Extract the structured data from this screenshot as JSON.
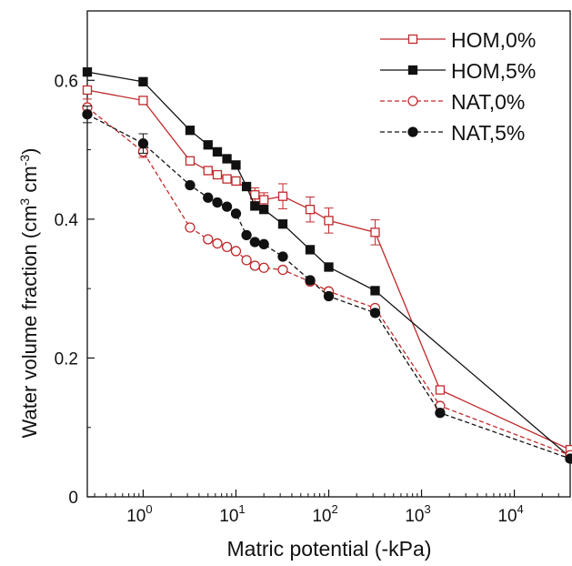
{
  "chart_data": {
    "type": "line",
    "xlabel": "Matric potential (-kPa)",
    "ylabel_main": "Water volume fraction (cm",
    "ylabel_sup1": "3",
    "ylabel_mid": " cm",
    "ylabel_sup2": "-3",
    "ylabel_end": ")",
    "x_scale": "log",
    "xlim": [
      0.25,
      40000
    ],
    "ylim": [
      0,
      0.7
    ],
    "x_ticks": [
      {
        "value": 1,
        "base": "10",
        "exp": "0"
      },
      {
        "value": 10,
        "base": "10",
        "exp": "1"
      },
      {
        "value": 100,
        "base": "10",
        "exp": "2"
      },
      {
        "value": 1000,
        "base": "10",
        "exp": "3"
      },
      {
        "value": 10000,
        "base": "10",
        "exp": "4"
      }
    ],
    "y_ticks": [
      {
        "value": 0,
        "label": "0"
      },
      {
        "value": 0.2,
        "label": "0.2"
      },
      {
        "value": 0.4,
        "label": "0.4"
      },
      {
        "value": 0.6,
        "label": "0.6"
      }
    ],
    "grid": false,
    "legend_position": "top-right",
    "series": [
      {
        "name": "HOM,0%",
        "color": "#c0292b",
        "marker": "square-open",
        "dash": "solid",
        "x": [
          0.25,
          1,
          3.2,
          5,
          6.3,
          8,
          10,
          16,
          20,
          32,
          63,
          100,
          316,
          1585,
          40000
        ],
        "y": [
          0.586,
          0.571,
          0.484,
          0.47,
          0.464,
          0.458,
          0.455,
          0.435,
          0.428,
          0.433,
          0.414,
          0.398,
          0.381,
          0.154,
          0.068
        ],
        "err": [
          0,
          0,
          0,
          0,
          0,
          0,
          0,
          0.01,
          0.01,
          0.018,
          0.018,
          0.018,
          0.018,
          0,
          0
        ]
      },
      {
        "name": "HOM,5%",
        "color": "#111111",
        "marker": "square-filled",
        "dash": "solid",
        "x": [
          0.25,
          1,
          3.2,
          5,
          6.3,
          8,
          10,
          13,
          16,
          20,
          32,
          63,
          100,
          316,
          40000
        ],
        "y": [
          0.612,
          0.598,
          0.528,
          0.507,
          0.497,
          0.487,
          0.478,
          0.447,
          0.419,
          0.414,
          0.393,
          0.356,
          0.331,
          0.297,
          0.057
        ],
        "err": [
          0,
          0,
          0,
          0,
          0,
          0,
          0,
          0,
          0,
          0,
          0,
          0,
          0,
          0,
          0
        ]
      },
      {
        "name": "NAT,0%",
        "color": "#c0292b",
        "marker": "circle-open",
        "dash": "dashed",
        "x": [
          0.25,
          1,
          3.2,
          5,
          6.3,
          8,
          10,
          13,
          16,
          20,
          32,
          63,
          100,
          316,
          1585,
          40000
        ],
        "y": [
          0.561,
          0.497,
          0.388,
          0.371,
          0.365,
          0.36,
          0.354,
          0.341,
          0.333,
          0.33,
          0.327,
          0.31,
          0.296,
          0.272,
          0.131,
          0.06
        ],
        "err": [
          0.012,
          0.008,
          0,
          0,
          0,
          0,
          0,
          0,
          0,
          0,
          0,
          0,
          0,
          0,
          0,
          0
        ]
      },
      {
        "name": "NAT,5%",
        "color": "#111111",
        "marker": "circle-filled",
        "dash": "dashed",
        "x": [
          0.25,
          1,
          3.2,
          5,
          6.3,
          8,
          10,
          13,
          16,
          20,
          32,
          63,
          100,
          316,
          1585,
          40000
        ],
        "y": [
          0.551,
          0.509,
          0.449,
          0.431,
          0.424,
          0.418,
          0.408,
          0.377,
          0.367,
          0.364,
          0.346,
          0.312,
          0.289,
          0.265,
          0.121,
          0.055
        ],
        "err": [
          0.012,
          0.014,
          0,
          0,
          0,
          0,
          0,
          0,
          0,
          0,
          0,
          0,
          0,
          0,
          0,
          0
        ]
      }
    ]
  }
}
